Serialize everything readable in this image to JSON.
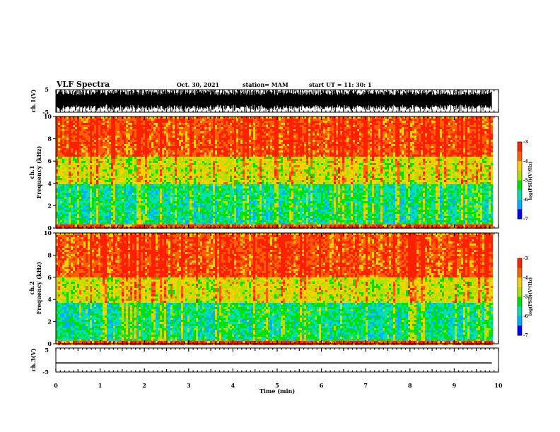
{
  "header": {
    "title": "VLF Spectra",
    "date": "Oct. 30, 2021",
    "station": "station= MAM",
    "start_ut": "start  UT =   11: 30: 1"
  },
  "chart_data": [
    {
      "type": "line",
      "panel": "ch1-waveform",
      "ylabel": "ch.1(V)",
      "ylim": [
        -5,
        5
      ],
      "yticks": [
        "5",
        "-5"
      ],
      "description_values": "dense impulsive waveform over full record"
    },
    {
      "type": "heatmap",
      "panel": "ch1-spectrogram",
      "ylabel_line1": "ch.1",
      "ylabel_line2": "Frequency (kHz)",
      "ylim": [
        0,
        10
      ],
      "yticks": [
        "0",
        "2",
        "4",
        "6",
        "8",
        "10"
      ],
      "colorbar": {
        "label": "log(PSD)(V²/Hz)",
        "range": [
          -7,
          -3
        ],
        "ticks": [
          "-3",
          "-4",
          "-5",
          "-6",
          "-7"
        ]
      },
      "bands_khz": [
        {
          "from": 0,
          "to": 0.5,
          "level": -3.6
        },
        {
          "from": 0.5,
          "to": 4,
          "level": -5.6
        },
        {
          "from": 4,
          "to": 6.5,
          "level": -4.6
        },
        {
          "from": 6.5,
          "to": 10,
          "level": -3.6
        }
      ]
    },
    {
      "type": "heatmap",
      "panel": "ch2-spectrogram",
      "ylabel_line1": "ch.2",
      "ylabel_line2": "Frequency (kHz)",
      "ylim": [
        0,
        10
      ],
      "yticks": [
        "0",
        "2",
        "4",
        "6",
        "8",
        "10"
      ],
      "colorbar": {
        "label": "log(PSD)(V²/Hz)",
        "range": [
          -7,
          -3
        ],
        "ticks": [
          "-3",
          "-4",
          "-5",
          "-6",
          "-7"
        ]
      },
      "bands_khz": [
        {
          "from": 0,
          "to": 0.3,
          "level": -3.6
        },
        {
          "from": 0.3,
          "to": 3.8,
          "level": -5.6
        },
        {
          "from": 3.8,
          "to": 6,
          "level": -4.6
        },
        {
          "from": 6,
          "to": 10,
          "level": -3.6
        }
      ]
    },
    {
      "type": "line",
      "panel": "ch3-waveform",
      "ylabel": "ch.3(V)",
      "ylim": [
        -5,
        5
      ],
      "yticks": [
        "5",
        "-5"
      ],
      "x": [
        0,
        9.85
      ],
      "y": [
        -1.2,
        -1.2
      ]
    }
  ],
  "xaxis": {
    "label": "Time (min)",
    "range": [
      0,
      10
    ],
    "ticks": [
      "0",
      "1",
      "2",
      "3",
      "4",
      "5",
      "6",
      "7",
      "8",
      "9",
      "10"
    ]
  },
  "colors": {
    "colormap": [
      "#000080",
      "#0000ff",
      "#00b0ff",
      "#00e0b0",
      "#00e000",
      "#b0e000",
      "#ffd000",
      "#ff6000",
      "#ff2000",
      "#ffffff"
    ]
  }
}
